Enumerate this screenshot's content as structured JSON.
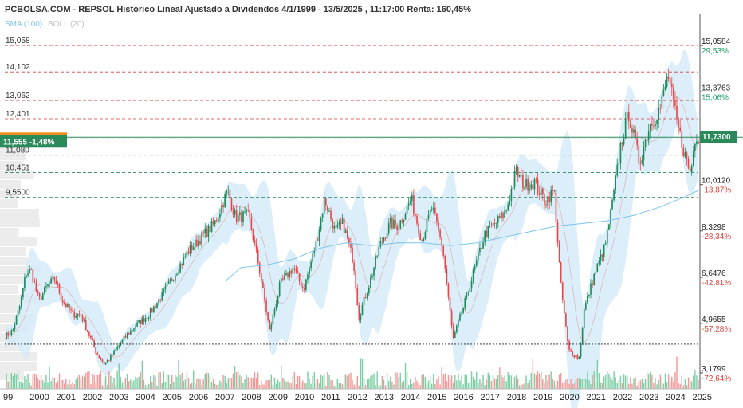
{
  "header": {
    "title": "PCBOLSA.COM - REPSOL Histórico Lineal Ajustado a Dividendos 4/1/1999 - 13/5/2025 , 11:17:00 Renta: 160,45%",
    "sma_label": "SMA (100)",
    "boll_label": "BOLL (20)"
  },
  "colors": {
    "up": "#1e8a5a",
    "down": "#e8474a",
    "band": "#d6ebf8",
    "sma": "#7fc4ea",
    "boll_mid": "#d8b4b4",
    "resistance": "#d04040",
    "support": "#2a8a5a",
    "current": "#2a8a5a",
    "marker_orange": "#f08c1e"
  },
  "current_price": {
    "value": 11.73,
    "label": "11,7300"
  },
  "left_marker": {
    "label": "11,555  -1,48%",
    "value": 11.555
  },
  "chart_data": {
    "type": "candlestick",
    "title": "PCBOLSA.COM - REPSOL Histórico Lineal Ajustado a Dividendos 4/1/1999 - 13/5/2025 , 11:17:00 Renta: 160,45%",
    "ylim": [
      2.6,
      15.9
    ],
    "xlim": [
      1999.0,
      2025.45
    ],
    "grid": false,
    "legend": "top-left",
    "series": [
      {
        "name": "SMA (100)"
      },
      {
        "name": "BOLL (20)"
      }
    ],
    "x_ticks": [
      "99",
      "2000",
      "2001",
      "2002",
      "2003",
      "2004",
      "2005",
      "2006",
      "2007",
      "2008",
      "2009",
      "2010",
      "2011",
      "2012",
      "2013",
      "2014",
      "2015",
      "2016",
      "2017",
      "2018",
      "2019",
      "2020",
      "2021",
      "2022",
      "2023",
      "2024",
      "2025"
    ],
    "right_axis": [
      {
        "value": 15.0584,
        "label": "15,0584",
        "pct": "29,53%",
        "pct_class": "pos"
      },
      {
        "value": 13.3763,
        "label": "13,3763",
        "pct": "15,06%",
        "pct_class": "pos"
      },
      {
        "value": 10.012,
        "label": "10,0120",
        "pct": "-13,87%",
        "pct_class": "neg"
      },
      {
        "value": 8.3298,
        "label": "8,3298",
        "pct": "-28,34%",
        "pct_class": "neg"
      },
      {
        "value": 6.6476,
        "label": "6,6476",
        "pct": "-42,81%",
        "pct_class": "neg"
      },
      {
        "value": 4.9655,
        "label": "4,9655",
        "pct": "-57,28%",
        "pct_class": "neg"
      },
      {
        "value": 3.1799,
        "label": "3,1799",
        "pct": "-72,64%",
        "pct_class": "neg"
      }
    ],
    "resistance_levels": [
      {
        "value": 15.058,
        "label": "15,058"
      },
      {
        "value": 14.102,
        "label": "14,102"
      },
      {
        "value": 13.062,
        "label": "13,062"
      },
      {
        "value": 12.401,
        "label": "12,401"
      }
    ],
    "support_levels": [
      {
        "value": 11.08,
        "label": "11,080"
      },
      {
        "value": 10.451,
        "label": "10,451"
      },
      {
        "value": 9.55,
        "label": "9,5500"
      }
    ],
    "dotted_level": 4.22,
    "price_path": [
      [
        1999.0,
        4.5
      ],
      [
        1999.3,
        4.7
      ],
      [
        1999.6,
        5.7
      ],
      [
        1999.8,
        6.8
      ],
      [
        2000.0,
        6.9
      ],
      [
        2000.3,
        5.8
      ],
      [
        2000.6,
        6.3
      ],
      [
        2000.9,
        6.6
      ],
      [
        2001.2,
        5.8
      ],
      [
        2001.6,
        5.3
      ],
      [
        2001.9,
        5.3
      ],
      [
        2002.2,
        4.6
      ],
      [
        2002.5,
        3.9
      ],
      [
        2002.8,
        3.5
      ],
      [
        2003.0,
        3.7
      ],
      [
        2003.3,
        4.1
      ],
      [
        2003.7,
        4.6
      ],
      [
        2004.0,
        4.9
      ],
      [
        2004.5,
        5.3
      ],
      [
        2005.0,
        6.0
      ],
      [
        2005.5,
        6.8
      ],
      [
        2006.0,
        7.6
      ],
      [
        2006.5,
        8.1
      ],
      [
        2007.0,
        8.6
      ],
      [
        2007.5,
        9.8
      ],
      [
        2007.8,
        8.8
      ],
      [
        2008.3,
        8.9
      ],
      [
        2008.7,
        7.0
      ],
      [
        2009.1,
        4.7
      ],
      [
        2009.5,
        6.4
      ],
      [
        2010.0,
        7.0
      ],
      [
        2010.4,
        6.2
      ],
      [
        2010.9,
        8.0
      ],
      [
        2011.2,
        9.5
      ],
      [
        2011.6,
        8.3
      ],
      [
        2011.9,
        8.6
      ],
      [
        2012.3,
        7.2
      ],
      [
        2012.5,
        5.2
      ],
      [
        2012.9,
        6.4
      ],
      [
        2013.3,
        7.8
      ],
      [
        2013.7,
        8.6
      ],
      [
        2014.0,
        8.5
      ],
      [
        2014.5,
        9.5
      ],
      [
        2014.9,
        8.0
      ],
      [
        2015.3,
        9.2
      ],
      [
        2015.7,
        7.7
      ],
      [
        2016.1,
        4.4
      ],
      [
        2016.5,
        5.6
      ],
      [
        2016.9,
        6.9
      ],
      [
        2017.3,
        8.2
      ],
      [
        2017.7,
        8.6
      ],
      [
        2018.1,
        9.0
      ],
      [
        2018.5,
        10.5
      ],
      [
        2018.8,
        10.0
      ],
      [
        2019.2,
        10.1
      ],
      [
        2019.6,
        9.4
      ],
      [
        2019.95,
        9.8
      ],
      [
        2020.2,
        6.4
      ],
      [
        2020.5,
        4.0
      ],
      [
        2020.9,
        3.7
      ],
      [
        2021.1,
        5.5
      ],
      [
        2021.5,
        6.8
      ],
      [
        2021.9,
        7.8
      ],
      [
        2022.2,
        9.5
      ],
      [
        2022.5,
        11.5
      ],
      [
        2022.8,
        12.6
      ],
      [
        2023.2,
        10.8
      ],
      [
        2023.6,
        12.2
      ],
      [
        2024.0,
        12.8
      ],
      [
        2024.3,
        14.0
      ],
      [
        2024.6,
        12.4
      ],
      [
        2024.9,
        11.2
      ],
      [
        2025.15,
        10.4
      ],
      [
        2025.35,
        11.9
      ],
      [
        2025.45,
        11.73
      ]
    ],
    "sma_path": [
      [
        2007.4,
        6.5
      ],
      [
        2008.0,
        7.0
      ],
      [
        2009.0,
        7.1
      ],
      [
        2010.0,
        7.3
      ],
      [
        2011.0,
        7.7
      ],
      [
        2012.0,
        7.9
      ],
      [
        2013.0,
        7.8
      ],
      [
        2014.0,
        7.9
      ],
      [
        2015.0,
        7.9
      ],
      [
        2016.0,
        7.8
      ],
      [
        2017.0,
        7.9
      ],
      [
        2018.0,
        8.1
      ],
      [
        2019.0,
        8.3
      ],
      [
        2020.0,
        8.5
      ],
      [
        2021.0,
        8.6
      ],
      [
        2022.0,
        8.7
      ],
      [
        2023.0,
        8.9
      ],
      [
        2024.0,
        9.2
      ],
      [
        2025.0,
        9.6
      ],
      [
        2025.45,
        9.8
      ]
    ]
  },
  "volume_profile_note": ""
}
